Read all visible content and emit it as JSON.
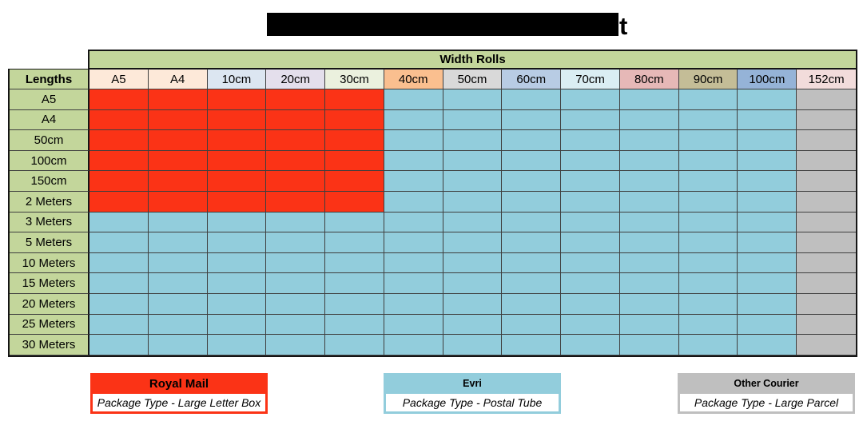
{
  "title_bar": {
    "trailing_char": "t",
    "note": "title text hidden behind solid black redaction bar; only final letter visible"
  },
  "chart_data": {
    "type": "heatmap",
    "x_axis_label": "Width Rolls",
    "y_axis_label": "Lengths",
    "x_categories": [
      "A5",
      "A4",
      "10cm",
      "20cm",
      "30cm",
      "40cm",
      "50cm",
      "60cm",
      "70cm",
      "80cm",
      "90cm",
      "100cm",
      "152cm"
    ],
    "y_categories": [
      "A5",
      "A4",
      "50cm",
      "100cm",
      "150cm",
      "2 Meters",
      "3 Meters",
      "5 Meters",
      "10 Meters",
      "15 Meters",
      "20 Meters",
      "25 Meters",
      "30 Meters"
    ],
    "values_key": {
      "R": "Royal Mail",
      "E": "Evri",
      "O": "Other Courier"
    },
    "colors": {
      "R": "#FB3316",
      "E": "#92CDDC",
      "O": "#BFBFBF"
    },
    "rows": [
      "RRRRREEEEEEEO",
      "RRRRREEEEEEEO",
      "RRRRREEEEEEEO",
      "RRRRREEEEEEEO",
      "RRRRREEEEEEEO",
      "RRRRREEEEEEEO",
      "EEEEEEEEEEEEO",
      "EEEEEEEEEEEEO",
      "EEEEEEEEEEEEO",
      "EEEEEEEEEEEEO",
      "EEEEEEEEEEEEO",
      "EEEEEEEEEEEEO",
      "EEEEEEEEEEEEO"
    ],
    "legend_position": "bottom",
    "grid": true
  },
  "table": {
    "corner_label": "Lengths",
    "group_header": "Width Rolls",
    "row_label_bg": "#C3D69B",
    "header_colors": [
      "#FDE9D9",
      "#FDE9D9",
      "#DCE6F1",
      "#E4DFEC",
      "#EBF1DE",
      "#FABF8F",
      "#D9D9D9",
      "#B8CCE4",
      "#DAEEF3",
      "#E6B8B7",
      "#C4BD97",
      "#95B3D7",
      "#F2DCDB"
    ]
  },
  "legend": {
    "items": [
      {
        "name": "Royal Mail",
        "package_type": "Package Type - Large Letter Box",
        "color": "#FB3316"
      },
      {
        "name": "Evri",
        "package_type": "Package Type - Postal Tube",
        "color": "#92CDDC"
      },
      {
        "name": "Other Courier",
        "package_type": "Package Type - Large Parcel",
        "color": "#BFBFBF"
      }
    ]
  }
}
